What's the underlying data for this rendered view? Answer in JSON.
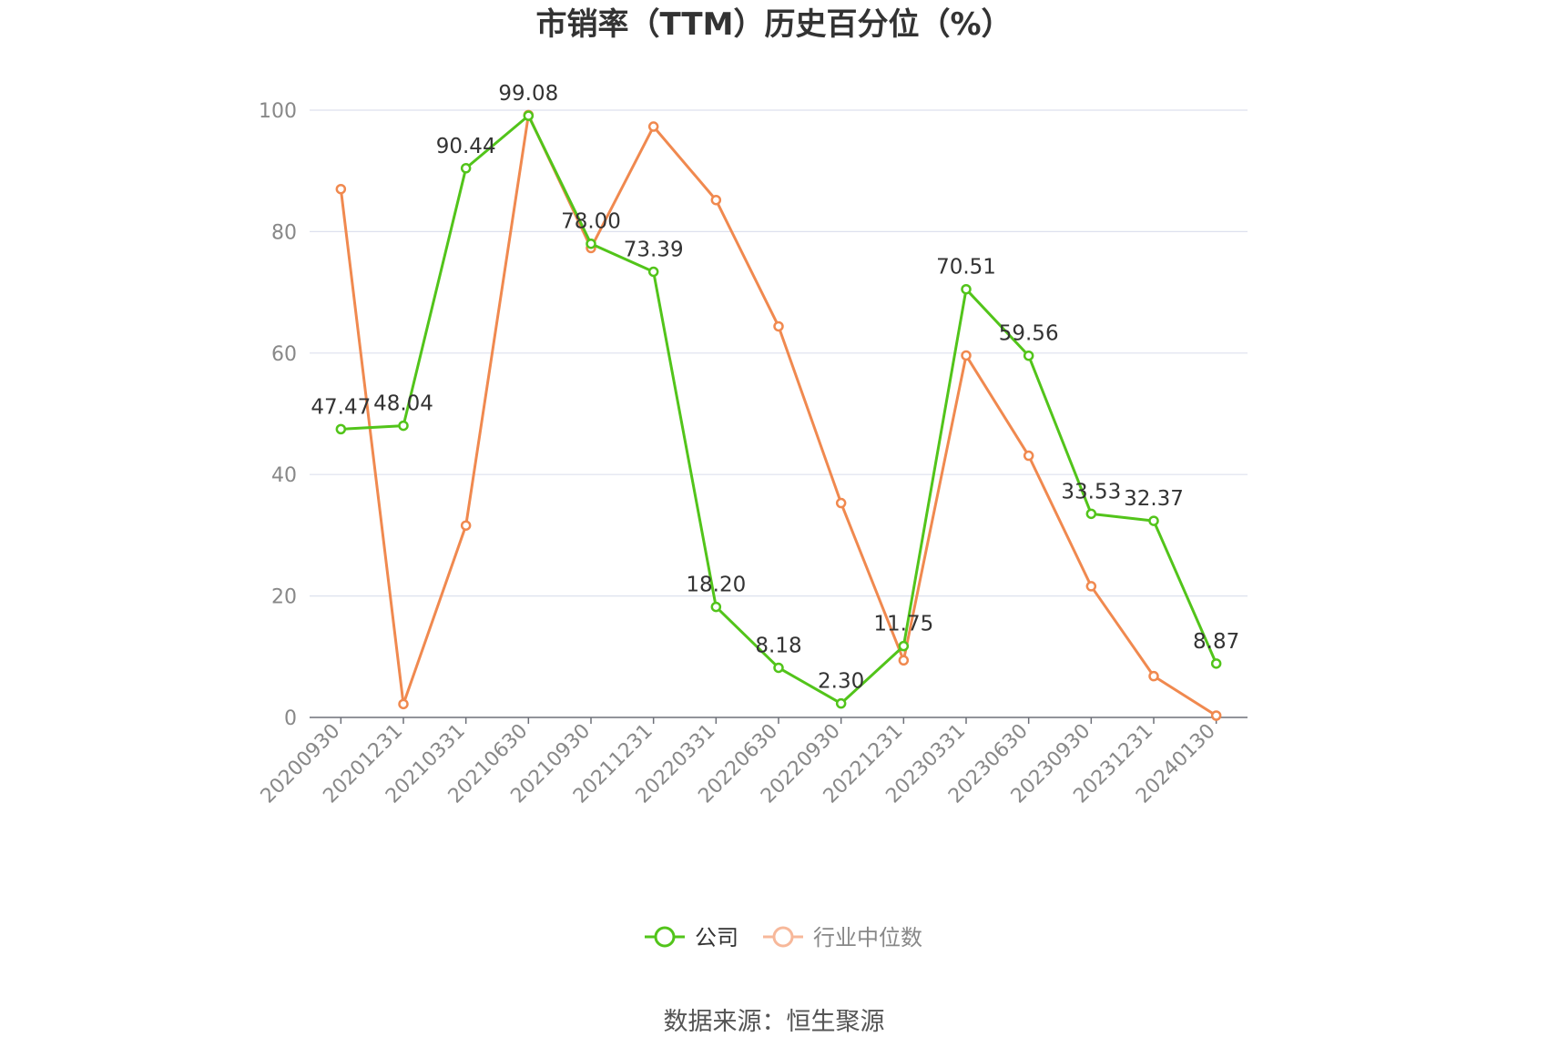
{
  "chart_data": {
    "type": "line",
    "title": "市销率（TTM）历史百分位（%）",
    "categories": [
      "20200930",
      "20201231",
      "20210331",
      "20210630",
      "20210930",
      "20211231",
      "20220331",
      "20220630",
      "20220930",
      "20221231",
      "20230331",
      "20230630",
      "20230930",
      "20231231",
      "20240130"
    ],
    "series": [
      {
        "name": "公司",
        "color": "#52c41a",
        "values": [
          47.47,
          48.04,
          90.44,
          99.08,
          78.0,
          73.39,
          18.2,
          8.18,
          2.3,
          11.75,
          70.51,
          59.56,
          33.53,
          32.37,
          8.87
        ],
        "labels": [
          "47.47",
          "48.04",
          "90.44",
          "99.08",
          "78.00",
          "73.39",
          "18.20",
          "8.18",
          "2.30",
          "11.75",
          "70.51",
          "59.56",
          "33.53",
          "32.37",
          "8.87"
        ]
      },
      {
        "name": "行业中位数",
        "color": "#f0894f",
        "values": [
          87.0,
          2.2,
          31.6,
          99.2,
          77.3,
          97.3,
          85.2,
          64.4,
          35.3,
          9.4,
          59.6,
          43.1,
          21.6,
          6.8,
          0.3
        ]
      }
    ],
    "y_ticks": [
      "0",
      "20",
      "40",
      "60",
      "80",
      "100"
    ],
    "ylim": [
      0,
      100
    ],
    "grid": true,
    "legend_position": "bottom"
  },
  "source": "数据来源：恒生聚源"
}
